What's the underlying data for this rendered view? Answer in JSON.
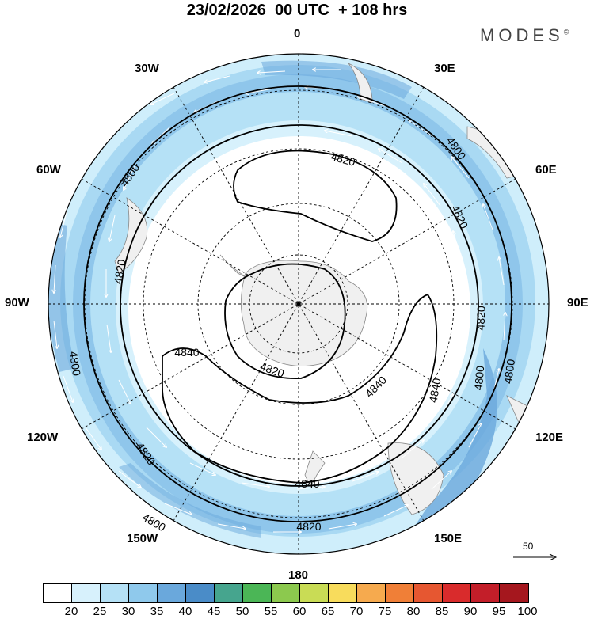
{
  "header": {
    "title": "23/02/2026  00 UTC  + 108 hrs",
    "brand": "MODES",
    "brand_mark": "©"
  },
  "map": {
    "projection": "polar stereographic (south pole)",
    "longitude_labels": [
      "0",
      "30E",
      "60E",
      "90E",
      "120E",
      "150E",
      "180",
      "150W",
      "120W",
      "90W",
      "60W",
      "30W"
    ],
    "contour_labels": [
      "4800",
      "4800",
      "4800",
      "4800",
      "4800",
      "4800",
      "4820",
      "4820",
      "4820",
      "4820",
      "4820",
      "4820",
      "4820",
      "4840",
      "4840",
      "4840",
      "4840"
    ],
    "reference_vector_label": "50",
    "colors": {
      "land": "#f0f0f0",
      "contour": "#000000",
      "wind_arrows": "#ffffff"
    }
  },
  "colorbar": {
    "labels": [
      "20",
      "25",
      "30",
      "35",
      "40",
      "45",
      "50",
      "55",
      "60",
      "65",
      "70",
      "75",
      "80",
      "85",
      "90",
      "95",
      "100"
    ],
    "colors": [
      "#ffffff",
      "#d7f1fc",
      "#b5e1f6",
      "#8fc9ec",
      "#6aa8dc",
      "#4a8cc8",
      "#46a58e",
      "#4bb656",
      "#8cc94e",
      "#c9dc55",
      "#f8dc5c",
      "#f6aa4e",
      "#f07f37",
      "#e65731",
      "#d92b2c",
      "#c31e29",
      "#a5171e"
    ]
  }
}
